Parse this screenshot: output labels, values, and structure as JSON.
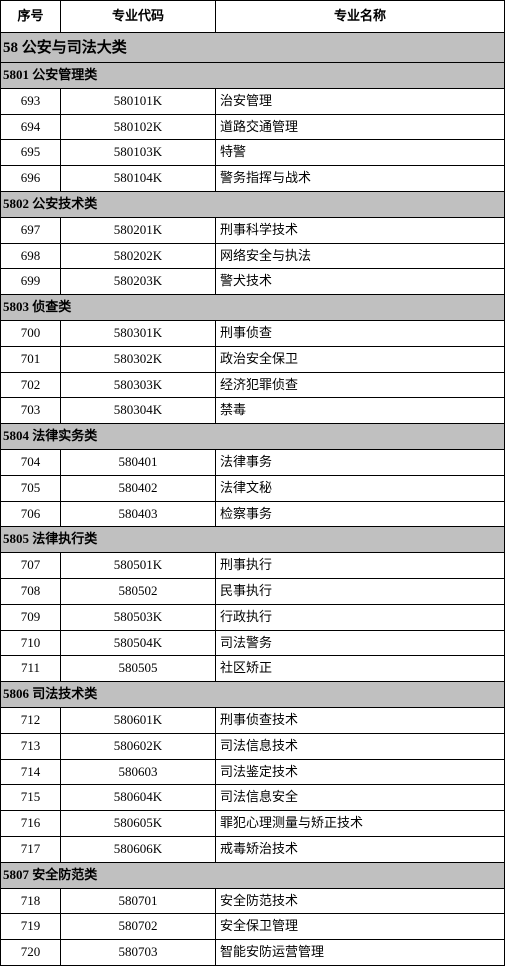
{
  "columns": {
    "seq": "序号",
    "code": "专业代码",
    "name": "专业名称"
  },
  "major_category": {
    "code": "58",
    "title": "公安与司法大类"
  },
  "subcategories": [
    {
      "code": "5801",
      "title": "公安管理类",
      "rows": [
        {
          "seq": "693",
          "code": "580101K",
          "name": "治安管理"
        },
        {
          "seq": "694",
          "code": "580102K",
          "name": "道路交通管理"
        },
        {
          "seq": "695",
          "code": "580103K",
          "name": "特警"
        },
        {
          "seq": "696",
          "code": "580104K",
          "name": "警务指挥与战术"
        }
      ]
    },
    {
      "code": "5802",
      "title": "公安技术类",
      "rows": [
        {
          "seq": "697",
          "code": "580201K",
          "name": "刑事科学技术"
        },
        {
          "seq": "698",
          "code": "580202K",
          "name": "网络安全与执法"
        },
        {
          "seq": "699",
          "code": "580203K",
          "name": "警犬技术"
        }
      ]
    },
    {
      "code": "5803",
      "title": "侦查类",
      "rows": [
        {
          "seq": "700",
          "code": "580301K",
          "name": "刑事侦查"
        },
        {
          "seq": "701",
          "code": "580302K",
          "name": "政治安全保卫"
        },
        {
          "seq": "702",
          "code": "580303K",
          "name": "经济犯罪侦查"
        },
        {
          "seq": "703",
          "code": "580304K",
          "name": "禁毒"
        }
      ]
    },
    {
      "code": "5804",
      "title": "法律实务类",
      "rows": [
        {
          "seq": "704",
          "code": "580401",
          "name": "法律事务"
        },
        {
          "seq": "705",
          "code": "580402",
          "name": "法律文秘"
        },
        {
          "seq": "706",
          "code": "580403",
          "name": "检察事务"
        }
      ]
    },
    {
      "code": "5805",
      "title": "法律执行类",
      "rows": [
        {
          "seq": "707",
          "code": "580501K",
          "name": "刑事执行"
        },
        {
          "seq": "708",
          "code": "580502",
          "name": "民事执行"
        },
        {
          "seq": "709",
          "code": "580503K",
          "name": "行政执行"
        },
        {
          "seq": "710",
          "code": "580504K",
          "name": "司法警务"
        },
        {
          "seq": "711",
          "code": "580505",
          "name": "社区矫正"
        }
      ]
    },
    {
      "code": "5806",
      "title": "司法技术类",
      "rows": [
        {
          "seq": "712",
          "code": "580601K",
          "name": "刑事侦查技术"
        },
        {
          "seq": "713",
          "code": "580602K",
          "name": "司法信息技术"
        },
        {
          "seq": "714",
          "code": "580603",
          "name": "司法鉴定技术"
        },
        {
          "seq": "715",
          "code": "580604K",
          "name": "司法信息安全"
        },
        {
          "seq": "716",
          "code": "580605K",
          "name": "罪犯心理测量与矫正技术"
        },
        {
          "seq": "717",
          "code": "580606K",
          "name": "戒毒矫治技术"
        }
      ]
    },
    {
      "code": "5807",
      "title": "安全防范类",
      "rows": [
        {
          "seq": "718",
          "code": "580701",
          "name": "安全防范技术"
        },
        {
          "seq": "719",
          "code": "580702",
          "name": "安全保卫管理"
        },
        {
          "seq": "720",
          "code": "580703",
          "name": "智能安防运营管理"
        }
      ]
    }
  ],
  "colors": {
    "header_bg": "#c0c0c0",
    "border": "#000000",
    "bg": "#ffffff"
  }
}
